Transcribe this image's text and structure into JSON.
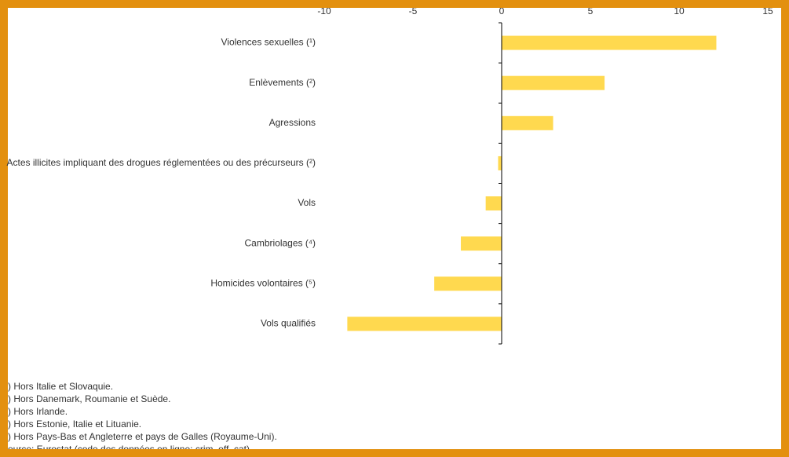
{
  "chart_data": {
    "type": "barh",
    "categories": [
      "Violences sexuelles (¹)",
      "Enlèvements (²)",
      "Agressions",
      "Actes illicites impliquant des drogues réglementées ou des précurseurs (²)",
      "Vols",
      "Cambriolages (⁴)",
      "Homicides volontaires (⁵)",
      "Vols qualifiés"
    ],
    "values": [
      12.1,
      5.8,
      2.9,
      -0.2,
      -0.9,
      -2.3,
      -3.8,
      -8.7
    ],
    "color": "#ffd94f",
    "xlim": [
      -10,
      15
    ],
    "xticks": [
      -10,
      -5,
      0,
      5,
      10,
      15
    ],
    "notes": [
      ") Hors Italie et Slovaquie.",
      ") Hors Danemark, Roumanie et Suède.",
      ") Hors Irlande.",
      ") Hors Estonie, Italie et Lituanie.",
      ") Hors Pays-Bas et Angleterre et pays de Galles (Royaume-Uni).",
      "ource: Eurostat (code des données en ligne: crim_off_cat)"
    ]
  }
}
